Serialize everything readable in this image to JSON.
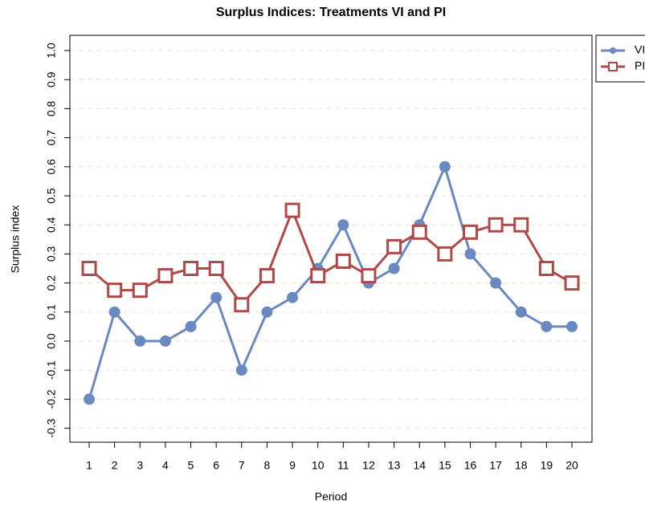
{
  "chart_data": {
    "type": "line",
    "title": "Surplus Indices: Treatments VI and PI",
    "x_label": "Period",
    "y_label": "Surplus index",
    "x": [
      1,
      2,
      3,
      4,
      5,
      6,
      7,
      8,
      9,
      10,
      11,
      12,
      13,
      14,
      15,
      16,
      17,
      18,
      19,
      20
    ],
    "series": [
      {
        "name": "VI",
        "color": "#6a89c0",
        "marker": "circle",
        "values": [
          -0.2,
          0.1,
          0,
          0,
          0.05,
          0.15,
          -0.1,
          0.1,
          0.15,
          0.25,
          0.4,
          0.2,
          0.25,
          0.4,
          0.6,
          0.3,
          0.2,
          0.1,
          0.05,
          0.05
        ]
      },
      {
        "name": "PI",
        "color": "#b04a48",
        "marker": "square",
        "values": [
          0.25,
          0.175,
          0.175,
          0.225,
          0.25,
          0.25,
          0.125,
          0.225,
          0.45,
          0.225,
          0.275,
          0.225,
          0.325,
          0.375,
          0.3,
          0.375,
          0.4,
          0.4,
          0.25,
          0.2
        ]
      }
    ],
    "xlim": [
      0.24,
      20.79
    ],
    "xticks": [
      1,
      2,
      3,
      4,
      5,
      6,
      7,
      8,
      9,
      10,
      11,
      12,
      13,
      14,
      15,
      16,
      17,
      18,
      19,
      20
    ],
    "ylim": [
      -0.348,
      1.0525
    ],
    "yticks": [
      -0.3,
      -0.2,
      -0.1,
      {
        "value": 0,
        "label": "0.0"
      },
      0.1,
      0.2,
      0.3,
      0.4,
      0.5,
      0.6,
      0.7,
      0.8,
      0.9,
      {
        "value": 1,
        "label": "1.0"
      }
    ],
    "grid": true,
    "legend": "top-right-outside"
  }
}
